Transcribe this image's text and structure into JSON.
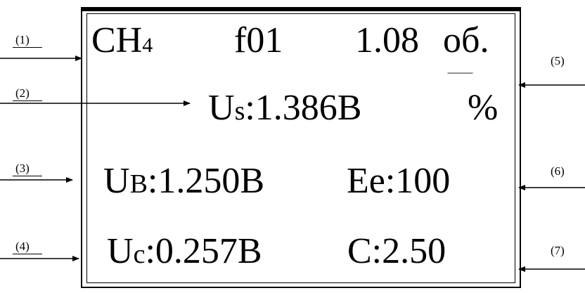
{
  "markers": [
    "(1)",
    "(2)",
    "(3)",
    "(4)",
    "(5)",
    "(6)",
    "(7)"
  ],
  "display": {
    "row1": {
      "gas_main": "CH",
      "gas_sub": "4",
      "code": "f01",
      "value": "1.08",
      "unit": "об."
    },
    "row2": {
      "us_label_main": "U",
      "us_label_sub": "s",
      "us_value": ":1.386B",
      "percent": "%"
    },
    "row3": {
      "ub_label_main": "U",
      "ub_label_sub": "B",
      "ub_value": ":1.250B",
      "ee": "Ee:100"
    },
    "row4": {
      "uc_label_main": "U",
      "uc_label_sub": "c",
      "uc_value": ":0.257B",
      "c": "C:2.50"
    },
    "unit_divider": "------------"
  }
}
